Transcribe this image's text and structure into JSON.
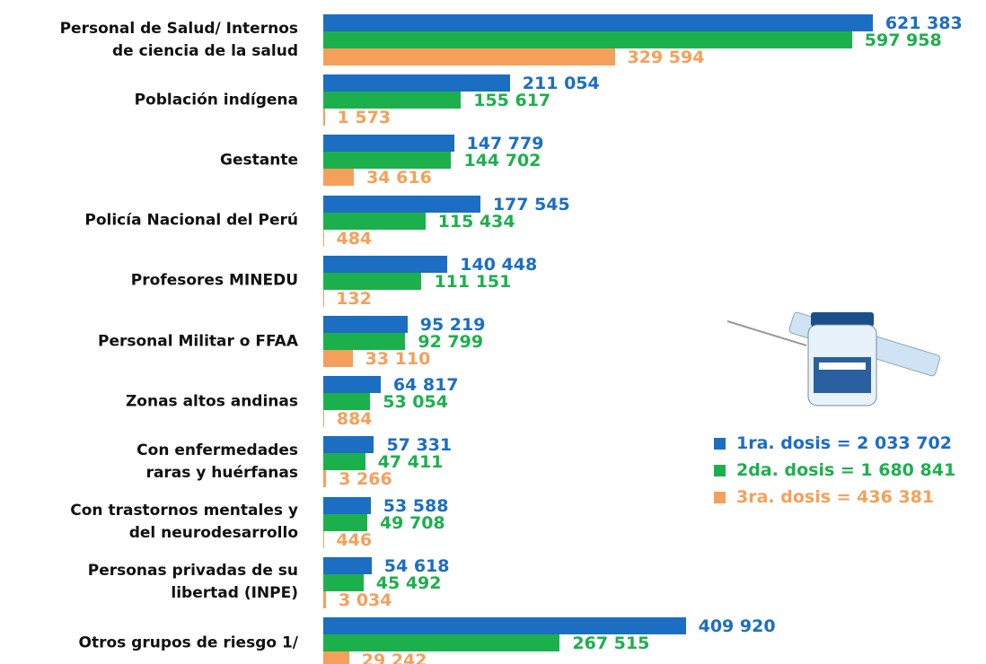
{
  "chart_data": {
    "type": "bar",
    "orientation": "horizontal",
    "categories": [
      "Personal de Salud/ Internos\nde ciencia de la salud",
      "Población indígena",
      "Gestante",
      "Policía Nacional del Perú",
      "Profesores MINEDU",
      "Personal Militar o FFAA",
      "Zonas altos andinas",
      "Con enfermedades\nraras y huérfanas",
      "Con trastornos mentales y\ndel neurodesarrollo",
      "Personas privadas de su\nlibertad (INPE)",
      "Otros grupos de riesgo 1/"
    ],
    "xlim": [
      0,
      650000
    ],
    "series": [
      {
        "name": "1ra. dosis = 2 033 702",
        "color": "#1b6ec2",
        "values": [
          621383,
          211054,
          147779,
          177545,
          140448,
          95219,
          64817,
          57331,
          53588,
          54618,
          409920
        ],
        "value_labels": [
          "621 383",
          "211 054",
          "147 779",
          "177 545",
          "140 448",
          "95 219",
          "64 817",
          "57 331",
          "53 588",
          "54 618",
          "409 920"
        ]
      },
      {
        "name": "2da. dosis = 1 680 841",
        "color": "#1cb04d",
        "values": [
          597958,
          155617,
          144702,
          115434,
          111151,
          92799,
          53054,
          47411,
          49708,
          45492,
          267515
        ],
        "value_labels": [
          "597 958",
          "155 617",
          "144 702",
          "115 434",
          "111 151",
          "92 799",
          "53 054",
          "47 411",
          "49 708",
          "45 492",
          "267 515"
        ]
      },
      {
        "name": "3ra. dosis = 436 381",
        "color": "#f5a05a",
        "values": [
          329594,
          1573,
          34616,
          484,
          132,
          33110,
          884,
          3266,
          446,
          3034,
          29242
        ],
        "value_labels": [
          "329 594",
          "1 573",
          "34 616",
          "484",
          "132",
          "33 110",
          "884",
          "3 266",
          "446",
          "3 034",
          "29 242"
        ]
      }
    ],
    "legend": "right"
  }
}
